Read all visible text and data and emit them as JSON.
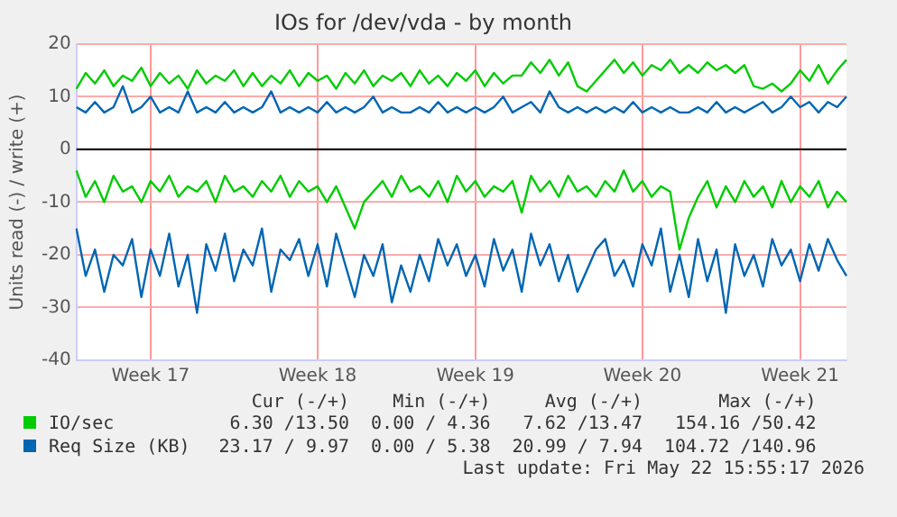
{
  "chart_data": {
    "type": "line",
    "title": "IOs for /dev/vda - by month",
    "ylabel": "Units read (-) / write (+)",
    "categories": [
      null,
      null,
      null,
      null,
      null,
      null,
      null,
      null,
      "Week 17",
      null,
      null,
      null,
      null,
      null,
      null,
      null,
      null,
      null,
      null,
      null,
      null,
      null,
      null,
      null,
      null,
      null,
      "Week 18",
      null,
      null,
      null,
      null,
      null,
      null,
      null,
      null,
      null,
      null,
      null,
      null,
      null,
      null,
      null,
      null,
      "Week 19",
      null,
      null,
      null,
      null,
      null,
      null,
      null,
      null,
      null,
      null,
      null,
      null,
      null,
      null,
      null,
      null,
      null,
      "Week 20",
      null,
      null,
      null,
      null,
      null,
      null,
      null,
      null,
      null,
      null,
      null,
      null,
      null,
      null,
      null,
      null,
      "Week 21",
      null,
      null,
      null,
      null,
      null
    ],
    "series": [
      {
        "name": "IO/sec",
        "color": "#00cc00",
        "values": [
          11.5,
          14.5,
          12.5,
          15,
          12,
          14,
          13,
          15.5,
          12,
          14.5,
          12.5,
          14,
          11.5,
          15,
          12.5,
          14,
          13,
          15,
          12,
          14.5,
          12,
          14,
          12.5,
          15,
          12,
          14.5,
          13,
          14,
          11.5,
          14.5,
          12.5,
          15,
          12,
          14,
          13,
          14.5,
          12,
          15,
          12.5,
          14,
          12,
          14.5,
          13,
          15,
          12,
          14.5,
          12.5,
          14,
          14,
          16.5,
          14.5,
          17,
          14,
          16.5,
          12,
          11,
          13,
          15,
          17,
          14.5,
          16.5,
          14,
          16,
          15,
          17,
          14.5,
          16,
          14.5,
          16.5,
          15,
          16,
          14.5,
          16,
          12,
          11.5,
          12.5,
          11,
          12.5,
          15,
          13,
          16,
          12.5,
          15,
          17
        ]
      },
      {
        "color": "#00cc00",
        "values": [
          -4,
          -9,
          -6,
          -10,
          -5,
          -8,
          -7,
          -10,
          -6,
          -8,
          -5,
          -9,
          -7,
          -8,
          -6,
          -10,
          -5,
          -8,
          -7,
          -9,
          -6,
          -8,
          -5,
          -9,
          -6,
          -8,
          -7,
          -10,
          -7,
          -11,
          -15,
          -10,
          -8,
          -6,
          -9,
          -5,
          -8,
          -7,
          -9,
          -6,
          -10,
          -5,
          -8,
          -6,
          -9,
          -7,
          -8,
          -6,
          -12,
          -5,
          -8,
          -6,
          -9,
          -5,
          -8,
          -7,
          -9,
          -6,
          -8,
          -4,
          -8,
          -6,
          -9,
          -7,
          -8,
          -19,
          -13,
          -9,
          -6,
          -11,
          -7,
          -10,
          -6,
          -9,
          -7,
          -11,
          -6,
          -10,
          -7,
          -9,
          -6,
          -11,
          -8,
          -10
        ]
      },
      {
        "name": "Req Size (KB)",
        "color": "#0066b3",
        "values": [
          8,
          7,
          9,
          7,
          8,
          12,
          7,
          8,
          10,
          7,
          8,
          7,
          11,
          7,
          8,
          7,
          9,
          7,
          8,
          7,
          8,
          11,
          7,
          8,
          7,
          8,
          7,
          9,
          7,
          8,
          7,
          8,
          10,
          7,
          8,
          7,
          7,
          8,
          7,
          9,
          7,
          8,
          7,
          8,
          7,
          8,
          10,
          7,
          8,
          9,
          7,
          11,
          8,
          7,
          8,
          7,
          8,
          7,
          8,
          7,
          9,
          7,
          8,
          7,
          8,
          7,
          7,
          8,
          7,
          9,
          7,
          8,
          7,
          8,
          9,
          7,
          8,
          10,
          8,
          9,
          7,
          9,
          8,
          10
        ]
      },
      {
        "color": "#0066b3",
        "values": [
          -15,
          -24,
          -19,
          -27,
          -20,
          -22,
          -17,
          -28,
          -19,
          -24,
          -16,
          -26,
          -20,
          -31,
          -18,
          -23,
          -16,
          -25,
          -19,
          -22,
          -15,
          -27,
          -19,
          -21,
          -17,
          -24,
          -18,
          -26,
          -16,
          -22,
          -28,
          -20,
          -24,
          -18,
          -29,
          -22,
          -27,
          -20,
          -25,
          -17,
          -22,
          -18,
          -24,
          -20,
          -26,
          -17,
          -23,
          -19,
          -27,
          -16,
          -22,
          -18,
          -25,
          -20,
          -27,
          -23,
          -19,
          -17,
          -24,
          -21,
          -26,
          -18,
          -22,
          -15,
          -27,
          -20,
          -28,
          -17,
          -25,
          -19,
          -31,
          -18,
          -24,
          -20,
          -26,
          -17,
          -22,
          -19,
          -25,
          -18,
          -23,
          -17,
          -21,
          -24
        ]
      }
    ],
    "ylim": [
      -40,
      20
    ],
    "yticks": [
      -40,
      -30,
      -20,
      -10,
      0,
      10,
      20
    ],
    "ref_lines": [
      {
        "axis": "y",
        "value": 0,
        "color": "#000000"
      }
    ],
    "grid": true,
    "legend": "bottom",
    "marker": "none",
    "line_style": "solid",
    "annotations": [
      "Cur (-/+)",
      "Min (-/+)",
      "Avg (-/+)",
      "Max (-/+)",
      "6.30 /13.50",
      "0.00 / 4.36",
      "7.62 /13.47",
      "154.16 /50.42",
      "23.17 / 9.97",
      "0.00 / 5.38",
      "20.99 / 7.94",
      "104.72 /140.96",
      "Last update: Fri May 22 15:55:17 2026"
    ]
  }
}
